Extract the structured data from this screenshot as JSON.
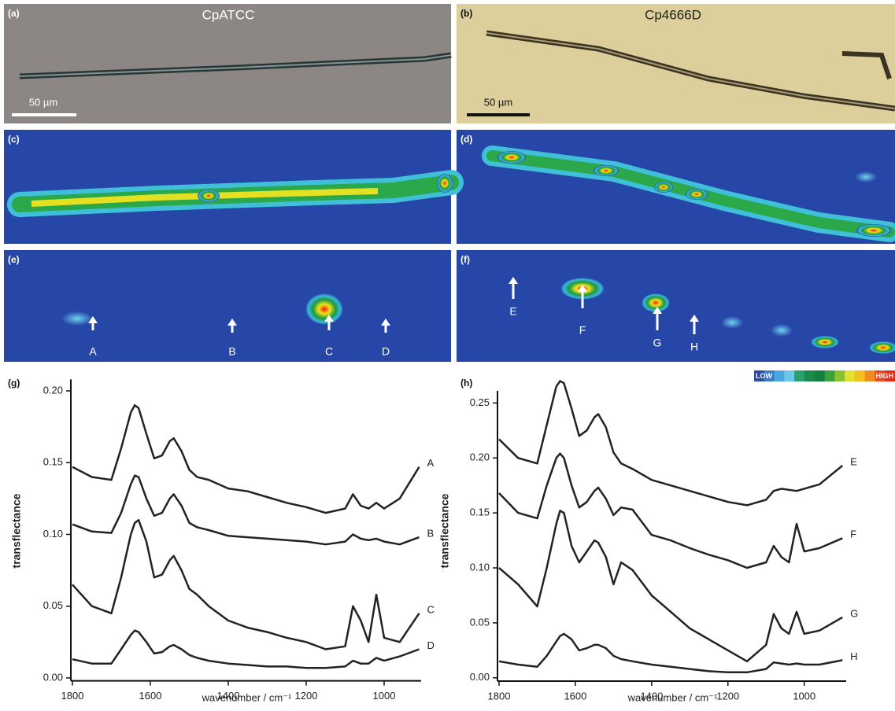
{
  "panels": [
    {
      "label": "(a)",
      "title": "CpATCC",
      "scale_bar": "50 µm"
    },
    {
      "label": "(b)",
      "title": "Cp4666D",
      "scale_bar": "50 µm"
    },
    {
      "label": "(c)"
    },
    {
      "label": "(d)"
    },
    {
      "label": "(e)",
      "markers": [
        "A",
        "B",
        "C",
        "D"
      ]
    },
    {
      "label": "(f)",
      "markers": [
        "E",
        "F",
        "G",
        "H"
      ]
    }
  ],
  "colorbar": {
    "low": "LOW",
    "high": "HIGH"
  },
  "chart_data": [
    {
      "type": "line",
      "panel_label": "(g)",
      "x_label": "wavenumber / cm⁻¹",
      "y_label": "transflectance",
      "x": [
        1800,
        1750,
        1700,
        1675,
        1650,
        1640,
        1630,
        1610,
        1590,
        1570,
        1550,
        1540,
        1520,
        1500,
        1480,
        1450,
        1400,
        1350,
        1300,
        1250,
        1200,
        1150,
        1100,
        1080,
        1060,
        1040,
        1020,
        1000,
        960,
        910
      ],
      "xlim": [
        1800,
        905
      ],
      "xticks": [
        1800,
        1600,
        1400,
        1200,
        1000
      ],
      "ylim": [
        -0.002,
        0.208
      ],
      "yticks": [
        {
          "value": 0,
          "label": "0.00"
        },
        {
          "value": 0.05,
          "label": "0.05"
        },
        {
          "value": 0.1,
          "label": "0.10"
        },
        {
          "value": 0.15,
          "label": "0.15"
        },
        {
          "value": 0.2,
          "label": "0.20"
        }
      ],
      "series": [
        {
          "name": "A",
          "color": "#222222",
          "values": [
            0.147,
            0.14,
            0.138,
            0.16,
            0.185,
            0.19,
            0.188,
            0.17,
            0.153,
            0.155,
            0.165,
            0.167,
            0.158,
            0.145,
            0.14,
            0.138,
            0.132,
            0.13,
            0.126,
            0.122,
            0.119,
            0.115,
            0.118,
            0.128,
            0.12,
            0.118,
            0.122,
            0.118,
            0.125,
            0.147
          ]
        },
        {
          "name": "B",
          "color": "#222222",
          "values": [
            0.107,
            0.102,
            0.101,
            0.115,
            0.135,
            0.141,
            0.14,
            0.125,
            0.113,
            0.115,
            0.125,
            0.128,
            0.12,
            0.108,
            0.105,
            0.103,
            0.099,
            0.098,
            0.097,
            0.096,
            0.095,
            0.093,
            0.095,
            0.1,
            0.097,
            0.096,
            0.097,
            0.095,
            0.093,
            0.098
          ]
        },
        {
          "name": "C",
          "color": "#222222",
          "values": [
            0.065,
            0.05,
            0.045,
            0.07,
            0.1,
            0.108,
            0.11,
            0.095,
            0.07,
            0.072,
            0.082,
            0.085,
            0.075,
            0.062,
            0.058,
            0.05,
            0.04,
            0.035,
            0.032,
            0.028,
            0.025,
            0.02,
            0.022,
            0.05,
            0.04,
            0.025,
            0.058,
            0.028,
            0.025,
            0.045
          ]
        },
        {
          "name": "D",
          "color": "#222222",
          "values": [
            0.013,
            0.01,
            0.01,
            0.02,
            0.03,
            0.033,
            0.032,
            0.025,
            0.017,
            0.018,
            0.022,
            0.023,
            0.02,
            0.016,
            0.014,
            0.012,
            0.01,
            0.009,
            0.008,
            0.008,
            0.007,
            0.007,
            0.008,
            0.012,
            0.01,
            0.01,
            0.014,
            0.012,
            0.015,
            0.02
          ]
        }
      ]
    },
    {
      "type": "line",
      "panel_label": "(h)",
      "x_label": "wavenumber / cm⁻¹",
      "y_label": "transflectance",
      "x": [
        1800,
        1750,
        1700,
        1675,
        1650,
        1640,
        1630,
        1610,
        1590,
        1570,
        1550,
        1540,
        1520,
        1500,
        1480,
        1450,
        1400,
        1350,
        1300,
        1250,
        1200,
        1150,
        1100,
        1080,
        1060,
        1040,
        1020,
        1000,
        960,
        900
      ],
      "xlim": [
        1800,
        890
      ],
      "xticks": [
        1800,
        1600,
        1400,
        1200,
        1000
      ],
      "ylim": [
        -0.003,
        0.261
      ],
      "yticks": [
        {
          "value": 0,
          "label": "0.00"
        },
        {
          "value": 0.05,
          "label": "0.05"
        },
        {
          "value": 0.1,
          "label": "0.10"
        },
        {
          "value": 0.15,
          "label": "0.15"
        },
        {
          "value": 0.2,
          "label": "0.20"
        },
        {
          "value": 0.25,
          "label": "0.25"
        }
      ],
      "series": [
        {
          "name": "E",
          "color": "#222222",
          "values": [
            0.217,
            0.2,
            0.195,
            0.23,
            0.265,
            0.27,
            0.268,
            0.245,
            0.22,
            0.225,
            0.237,
            0.24,
            0.228,
            0.205,
            0.195,
            0.19,
            0.18,
            0.175,
            0.17,
            0.165,
            0.16,
            0.157,
            0.162,
            0.17,
            0.172,
            0.171,
            0.17,
            0.172,
            0.176,
            0.193
          ]
        },
        {
          "name": "F",
          "color": "#222222",
          "values": [
            0.168,
            0.15,
            0.145,
            0.175,
            0.2,
            0.204,
            0.2,
            0.175,
            0.155,
            0.16,
            0.17,
            0.173,
            0.163,
            0.148,
            0.155,
            0.153,
            0.13,
            0.125,
            0.118,
            0.112,
            0.107,
            0.1,
            0.105,
            0.12,
            0.11,
            0.105,
            0.14,
            0.115,
            0.118,
            0.127
          ]
        },
        {
          "name": "G",
          "color": "#222222",
          "values": [
            0.1,
            0.085,
            0.065,
            0.1,
            0.14,
            0.152,
            0.15,
            0.12,
            0.105,
            0.115,
            0.125,
            0.123,
            0.11,
            0.085,
            0.105,
            0.098,
            0.075,
            0.06,
            0.045,
            0.035,
            0.025,
            0.015,
            0.03,
            0.058,
            0.045,
            0.04,
            0.06,
            0.04,
            0.043,
            0.055
          ]
        },
        {
          "name": "H",
          "color": "#222222",
          "values": [
            0.015,
            0.012,
            0.01,
            0.02,
            0.033,
            0.038,
            0.04,
            0.035,
            0.025,
            0.027,
            0.03,
            0.03,
            0.027,
            0.02,
            0.017,
            0.015,
            0.012,
            0.01,
            0.008,
            0.006,
            0.005,
            0.005,
            0.008,
            0.014,
            0.013,
            0.012,
            0.013,
            0.012,
            0.012,
            0.016
          ]
        }
      ]
    }
  ]
}
